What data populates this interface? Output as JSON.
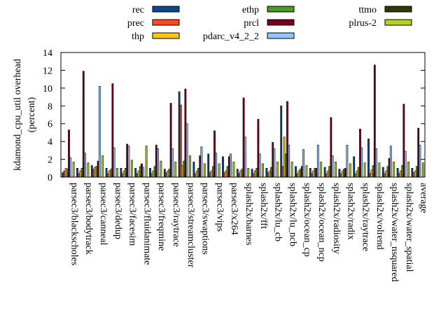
{
  "chart_data": {
    "type": "bar",
    "ylabel_line1": "kdamond_cpu_util overhead",
    "ylabel_line2": "(percent)",
    "ylim": [
      0,
      14
    ],
    "yticks": [
      0,
      2,
      4,
      6,
      8,
      10,
      12,
      14
    ],
    "legend_position": "top",
    "categories": [
      "parsec3/blackscholes",
      "parsec3/bodytrack",
      "parsec3/canneal",
      "parsec3/dedup",
      "parsec3/facesim",
      "parsec3/fluidanimate",
      "parsec3/freqmine",
      "parsec3/raytrace",
      "parsec3/streamcluster",
      "parsec3/swaptions",
      "parsec3/vips",
      "parsec3/x264",
      "splash2x/barnes",
      "splash2x/fft",
      "splash2x/lu_cb",
      "splash2x/lu_ncb",
      "splash2x/ocean_cp",
      "splash2x/ocean_ncp",
      "splash2x/radiosity",
      "splash2x/radix",
      "splash2x/raytrace",
      "splash2x/volrend",
      "splash2x/water_nsquared",
      "splash2x/water_spatial",
      "average"
    ],
    "series": [
      {
        "name": "rec",
        "color": "#0a4a8c",
        "values": [
          0.5,
          1.0,
          1.3,
          1.0,
          1.0,
          1.0,
          1.0,
          0.9,
          9.6,
          1.7,
          2.6,
          2.3,
          0.9,
          0.9,
          1.0,
          8.0,
          1.2,
          1.0,
          1.1,
          0.9,
          2.3,
          4.3,
          1.1,
          1.0,
          1.0
        ]
      },
      {
        "name": "prec",
        "color": "#ff4a1a",
        "values": [
          0.7,
          0.4,
          0.9,
          0.4,
          0.4,
          0.4,
          0.4,
          0.5,
          8.1,
          0.4,
          0.5,
          0.5,
          0.4,
          0.4,
          0.5,
          1.2,
          0.4,
          0.4,
          0.4,
          0.4,
          0.4,
          0.4,
          0.4,
          0.4,
          0.5
        ]
      },
      {
        "name": "thp",
        "color": "#ffc61a",
        "values": [
          1.0,
          0.7,
          1.1,
          0.7,
          0.7,
          0.7,
          0.7,
          0.7,
          1.3,
          0.7,
          0.7,
          0.7,
          0.7,
          0.7,
          0.7,
          4.5,
          0.7,
          0.7,
          0.7,
          0.7,
          0.7,
          0.8,
          0.7,
          0.7,
          0.7
        ]
      },
      {
        "name": "ethp",
        "color": "#4a9a24",
        "values": [
          0.9,
          1.0,
          1.2,
          0.9,
          1.0,
          1.2,
          1.2,
          0.9,
          1.8,
          1.0,
          1.2,
          1.2,
          0.9,
          1.0,
          1.1,
          2.6,
          0.9,
          1.0,
          1.2,
          0.9,
          1.1,
          1.3,
          1.2,
          1.3,
          1.2
        ]
      },
      {
        "name": "prcl",
        "color": "#7a0020",
        "values": [
          5.3,
          11.9,
          1.8,
          10.5,
          3.7,
          1.5,
          3.6,
          8.3,
          9.9,
          2.4,
          5.2,
          2.3,
          8.9,
          6.5,
          3.9,
          8.5,
          1.2,
          1.0,
          6.7,
          1.0,
          5.4,
          12.6,
          2.1,
          8.2,
          5.5
        ]
      },
      {
        "name": "pdarc_v4_2_2",
        "color": "#8cc8ff",
        "values": [
          2.2,
          2.7,
          10.2,
          3.3,
          3.5,
          1.1,
          3.2,
          3.2,
          6.0,
          3.4,
          2.7,
          2.6,
          4.5,
          2.6,
          3.2,
          3.6,
          3.1,
          3.6,
          2.4,
          3.6,
          3.3,
          3.2,
          3.5,
          2.9,
          3.6
        ]
      },
      {
        "name": "ttmo",
        "color": "#2e3a0a",
        "values": [
          0.0,
          0.0,
          0.0,
          0.0,
          0.0,
          0.0,
          0.0,
          0.0,
          0.0,
          0.0,
          0.0,
          0.0,
          0.0,
          0.0,
          0.0,
          0.0,
          0.0,
          0.0,
          0.0,
          0.0,
          0.0,
          0.0,
          0.0,
          0.0,
          0.0
        ]
      },
      {
        "name": "plrus-2",
        "color": "#b4d21e",
        "values": [
          1.7,
          1.6,
          2.4,
          1.0,
          1.9,
          3.5,
          1.8,
          1.7,
          2.4,
          1.5,
          1.5,
          1.7,
          1.0,
          1.5,
          1.7,
          1.7,
          1.3,
          1.7,
          1.7,
          1.5,
          1.6,
          1.6,
          1.7,
          1.7,
          1.6
        ]
      }
    ]
  }
}
